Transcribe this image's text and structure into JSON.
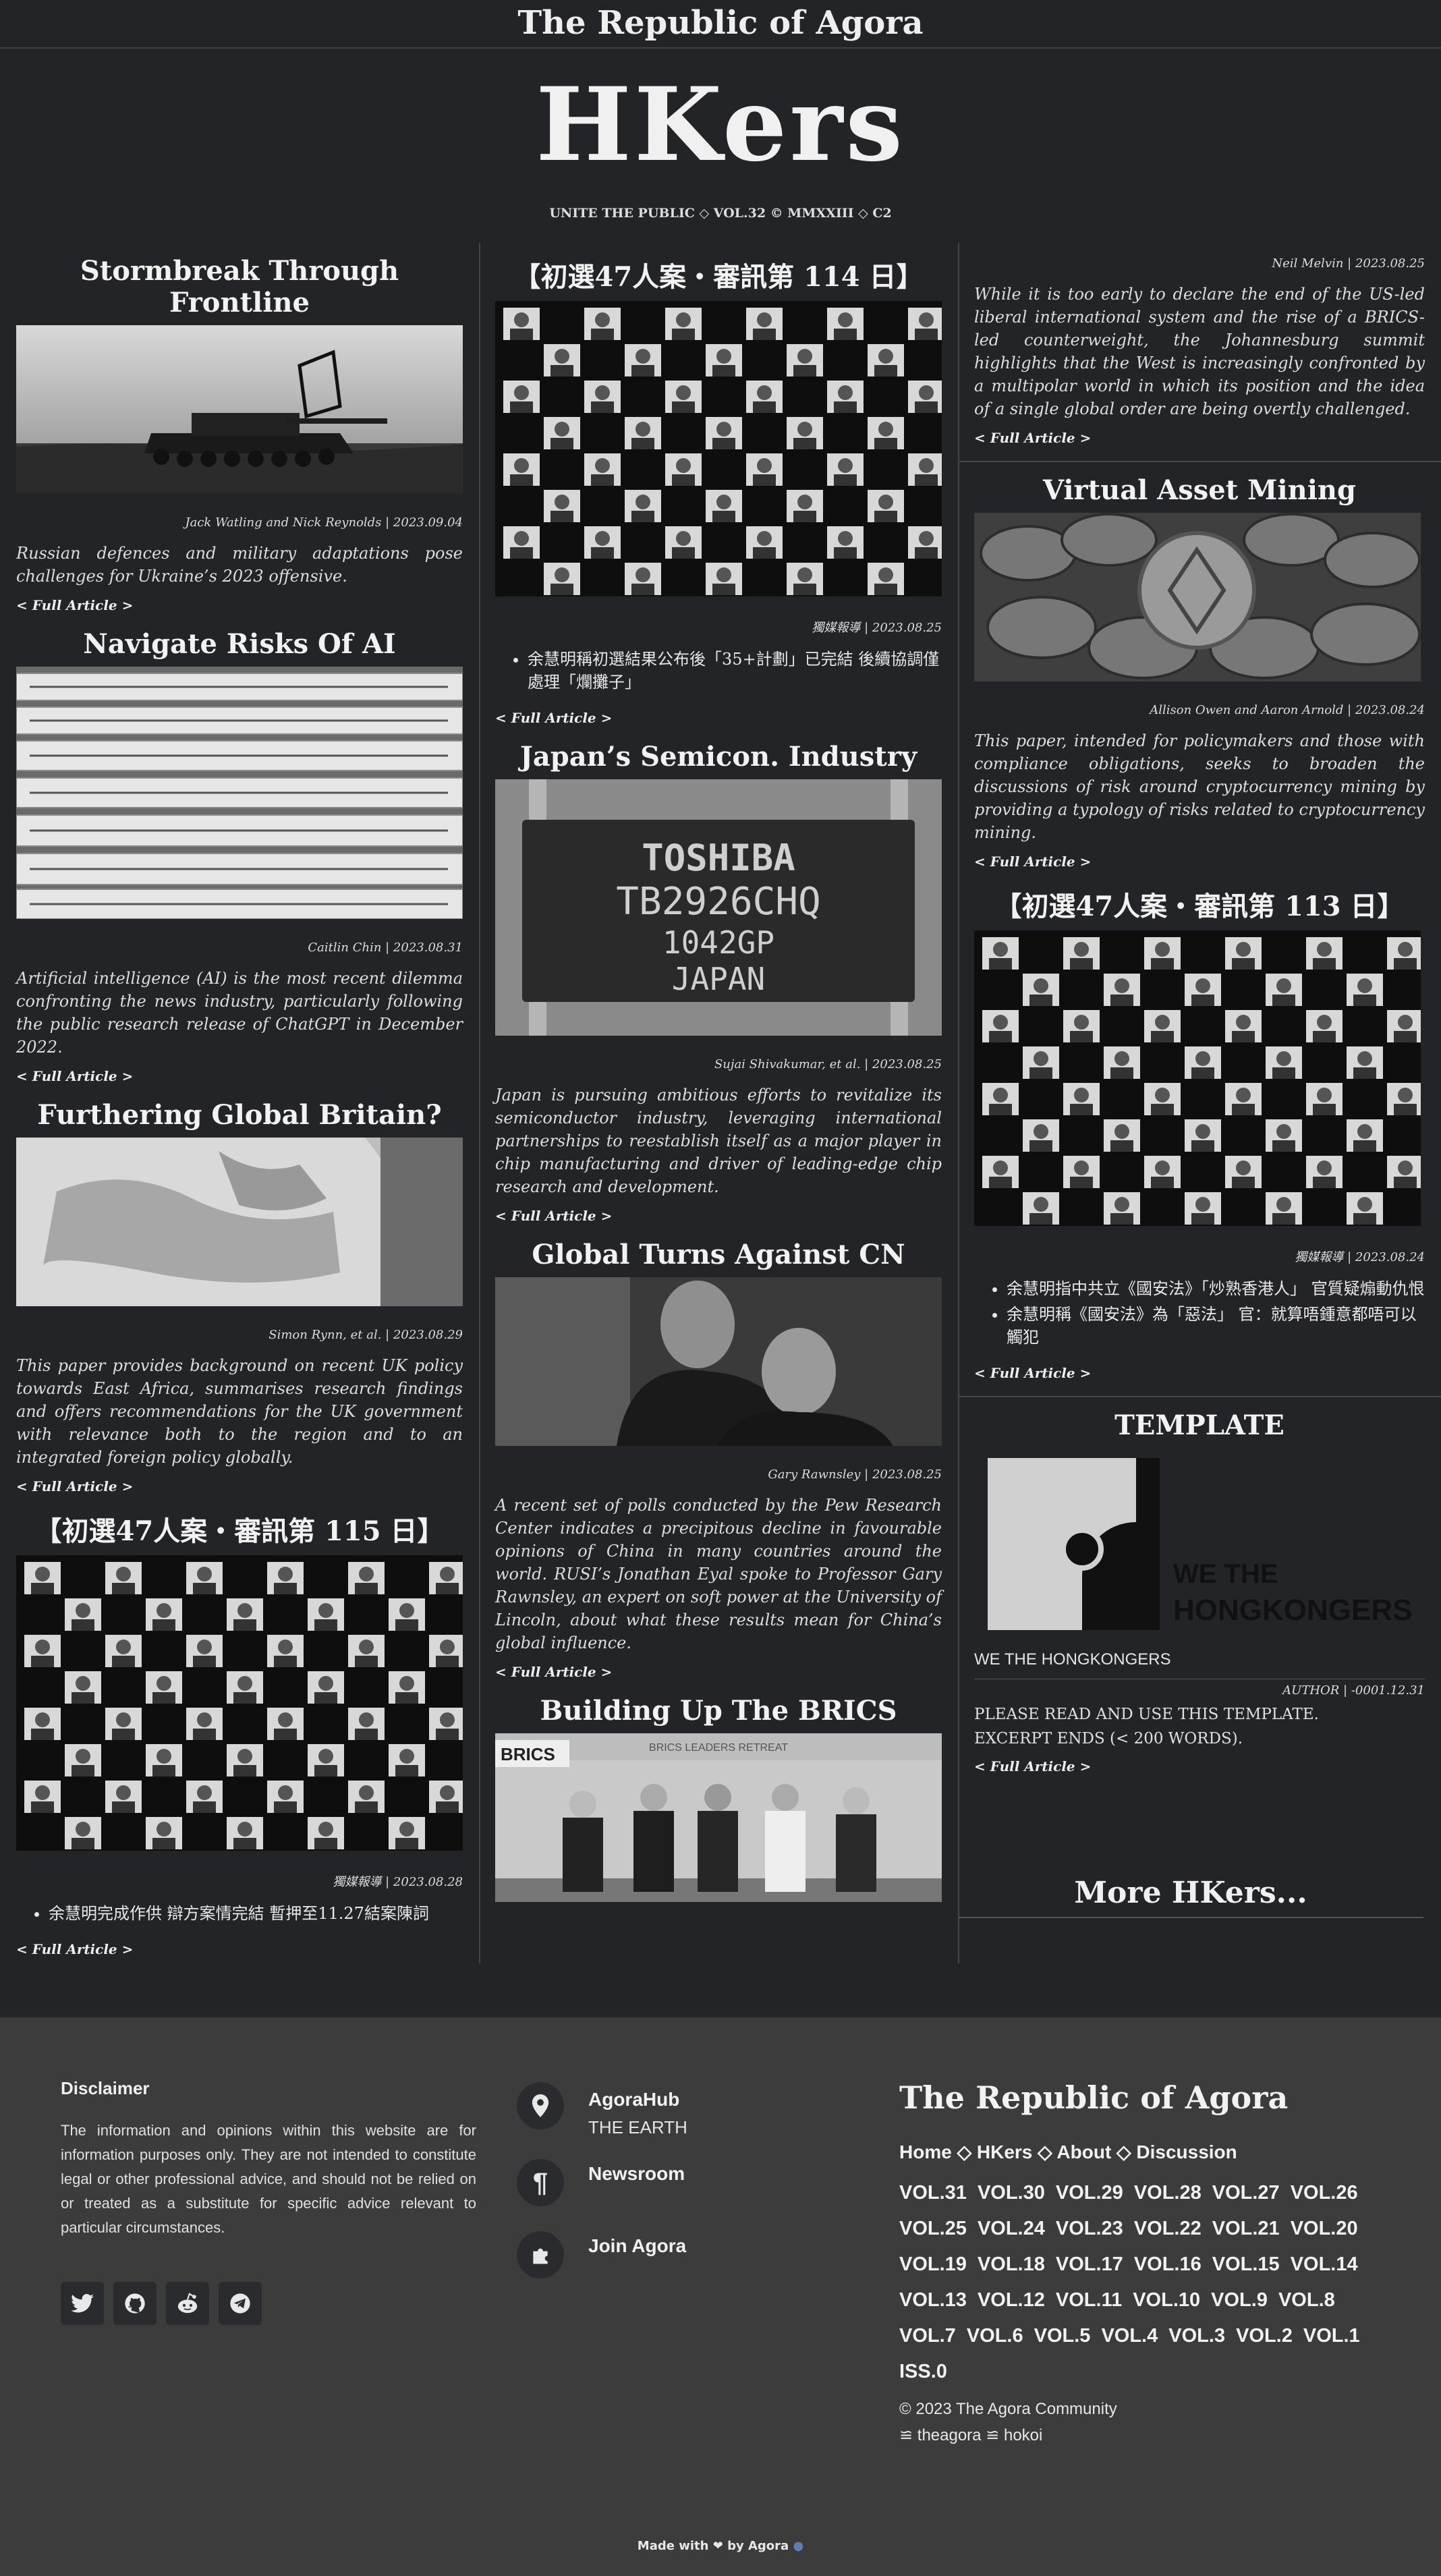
{
  "site": {
    "top_title": "The Republic of Agora",
    "masthead": "HKers",
    "motto": "UNITE THE PUBLIC ◇ VOL.32 © MMXXIII ◇ C2",
    "more_label": "More HKers..."
  },
  "full_article": "< Full Article >",
  "articles": {
    "stormbreak": {
      "title": "Stormbreak Through Frontline",
      "byline": "Jack Watling and Nick Reynolds | 2023.09.04",
      "desc": "Russian defences and military adaptations pose challenges for Ukraine’s 2023 offensive."
    },
    "ai": {
      "title": "Navigate Risks Of AI",
      "byline": "Caitlin Chin | 2023.08.31",
      "desc": "Artificial intelligence (AI) is the most recent dilemma confronting the news industry, particularly following the public research release of ChatGPT in December 2022."
    },
    "britain": {
      "title": "Furthering Global Britain?",
      "byline": "Simon Rynn, et al. | 2023.08.29",
      "desc": "This paper provides background on recent UK policy towards East Africa, summarises research findings and offers recommendations for the UK government with relevance both to the region and to an integrated foreign policy globally."
    },
    "trial115": {
      "title": "【初選47人案・審訊第 115 日】",
      "byline": "獨媒報導 | 2023.08.28",
      "bullets": [
        "余慧明完成作供 辯方案情完結 暫押至11.27結案陳詞"
      ]
    },
    "trial114": {
      "title": "【初選47人案・審訊第 114 日】",
      "byline": "獨媒報導 | 2023.08.25",
      "bullets": [
        "余慧明稱初選結果公布後「35+計劃」已完結 後續協調僅處理「爛攤子」"
      ]
    },
    "semicon": {
      "title": "Japan’s Semicon. Industry",
      "byline": "Sujai Shivakumar, et al. | 2023.08.25",
      "desc": "Japan is pursuing ambitious efforts to revitalize its semiconductor industry, leveraging international partnerships to reestablish itself as a major player in chip manufacturing and driver of leading-edge chip research and development.",
      "chip_lines": [
        "TOSHIBA",
        "TB2926CHQ",
        "1042GP",
        "JAPAN"
      ]
    },
    "cn": {
      "title": "Global Turns Against CN",
      "byline": "Gary Rawnsley | 2023.08.25",
      "desc": "A recent set of polls conducted by the Pew Research Center indicates a precipitous decline in favourable opinions of China in many countries around the world. RUSI’s Jonathan Eyal spoke to Professor Gary Rawnsley, an expert on soft power at the University of Lincoln, about what these results mean for China’s global influence."
    },
    "brics": {
      "title": "Building Up The BRICS",
      "sign": "BRICS",
      "banner": "BRICS LEADERS RETREAT"
    },
    "neil": {
      "byline": "Neil Melvin | 2023.08.25",
      "desc": "While it is too early to declare the end of the US-led liberal international system and the rise of a BRICS-led counterweight, the Johannesburg summit highlights that the West is increasingly confronted by a multipolar world in which its position and the idea of a single global order are being overtly challenged."
    },
    "crypto": {
      "title": "Virtual Asset Mining",
      "byline": "Allison Owen and Aaron Arnold | 2023.08.24",
      "desc": "This paper, intended for policymakers and those with compliance obligations, seeks to broaden the discussions of risk around cryptocurrency mining by providing a typology of risks related to cryptocurrency mining."
    },
    "trial113": {
      "title": "【初選47人案・審訊第 113 日】",
      "byline": "獨媒報導 | 2023.08.24",
      "bullets": [
        "余慧明指中共立《國安法》「炒熟香港人」 官質疑煽動仇恨",
        "余慧明稱《國安法》為「惡法」 官：就算唔鍾意都唔可以觸犯"
      ]
    },
    "template": {
      "title": "TEMPLATE",
      "logo_line1": "WE THE",
      "logo_line2": "HONGKONGERS",
      "caption": "WE THE HONGKONGERS",
      "byline": "AUTHOR | -0001.12.31",
      "line1": "PLEASE READ AND USE THIS TEMPLATE.",
      "line2": "EXCERPT ENDS (< 200 WORDS)."
    }
  },
  "footer": {
    "disclaimer_title": "Disclaimer",
    "disclaimer_text": "The information and opinions within this website are for information purposes only. They are not intended to constitute legal or other professional advice, and should not be relied on or treated as a substitute for specific advice relevant to particular circumstances.",
    "hub_label": "AgoraHub",
    "hub_sub": "THE EARTH",
    "newsroom_label": "Newsroom",
    "join_label": "Join Agora",
    "brand": "The Republic of Agora",
    "menu": "Home ◇ HKers ◇ About ◇ Discussion",
    "volumes": [
      "VOL.31",
      "VOL.30",
      "VOL.29",
      "VOL.28",
      "VOL.27",
      "VOL.26",
      "VOL.25",
      "VOL.24",
      "VOL.23",
      "VOL.22",
      "VOL.21",
      "VOL.20",
      "VOL.19",
      "VOL.18",
      "VOL.17",
      "VOL.16",
      "VOL.15",
      "VOL.14",
      "VOL.13",
      "VOL.12",
      "VOL.11",
      "VOL.10",
      "VOL.9",
      "VOL.8",
      "VOL.7",
      "VOL.6",
      "VOL.5",
      "VOL.4",
      "VOL.3",
      "VOL.2",
      "VOL.1",
      "ISS.0"
    ],
    "copyright": "© 2023 The Agora Community",
    "handles": "≌ theagora ≌ hokoi",
    "made_with_prefix": "Made with",
    "made_with_suffix": "by Agora"
  }
}
